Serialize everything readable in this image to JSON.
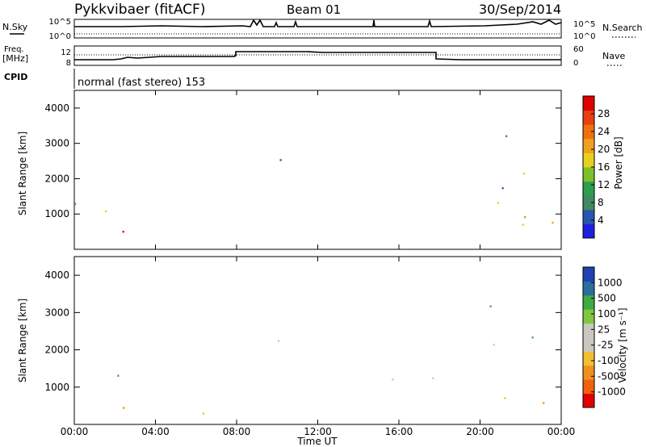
{
  "header": {
    "radar": "Pykkvibaer (fitACF)",
    "beam": "Beam 01",
    "date": "30/Sep/2014"
  },
  "top_panels": {
    "nsky_label": "N.Sky",
    "nsky_ticks": [
      "10^5",
      "10^0"
    ],
    "nsearch_label": "N.Search",
    "nsearch_ticks": [
      "10^5",
      "10^0"
    ],
    "freq_label": "Freq.",
    "freq_unit": "[MHz]",
    "freq_ticks": [
      "12",
      "8"
    ],
    "nave_label": "Nave",
    "nave_ticks": [
      "60",
      "0"
    ],
    "cpid_label": "CPID",
    "cpid_text": "normal (fast stereo) 153"
  },
  "colors": {
    "power_scale": [
      "#1f1fe0",
      "#2a55b0",
      "#3f8a5e",
      "#2e9e4e",
      "#7fc02a",
      "#e8d020",
      "#f0a020",
      "#f07010",
      "#e84010",
      "#e00000"
    ],
    "velocity_scale": [
      "#e00000",
      "#f06010",
      "#f09020",
      "#f0c030",
      "#c8c8c0",
      "#c8c8c0",
      "#80c840",
      "#3faa3f",
      "#2a6ea0",
      "#2040b0"
    ]
  },
  "chart_data": [
    {
      "type": "heatmap",
      "title": "",
      "xlabel": "",
      "ylabel": "Slant Range [km]",
      "xlim": [
        "00:00",
        "00:00"
      ],
      "ylim": [
        0,
        4500
      ],
      "yticks": [
        "1000",
        "2000",
        "3000",
        "4000"
      ],
      "colorbar": {
        "label": "Power [dB]",
        "ticks": [
          "28",
          "24",
          "20",
          "16",
          "12",
          "8",
          "4"
        ],
        "range": [
          0,
          30
        ]
      },
      "grid": false
    },
    {
      "type": "heatmap",
      "title": "",
      "xlabel": "Time UT",
      "ylabel": "Slant Range [km]",
      "xticks": [
        "00:00",
        "04:00",
        "08:00",
        "12:00",
        "16:00",
        "20:00",
        "00:00"
      ],
      "ylim": [
        0,
        4500
      ],
      "yticks": [
        "1000",
        "2000",
        "3000",
        "4000"
      ],
      "colorbar": {
        "label": "Velocity [m s⁻¹]",
        "ticks": [
          "1000",
          "500",
          "100",
          "25",
          "-25",
          "-100",
          "-500",
          "-1000"
        ]
      },
      "grid": false
    }
  ]
}
